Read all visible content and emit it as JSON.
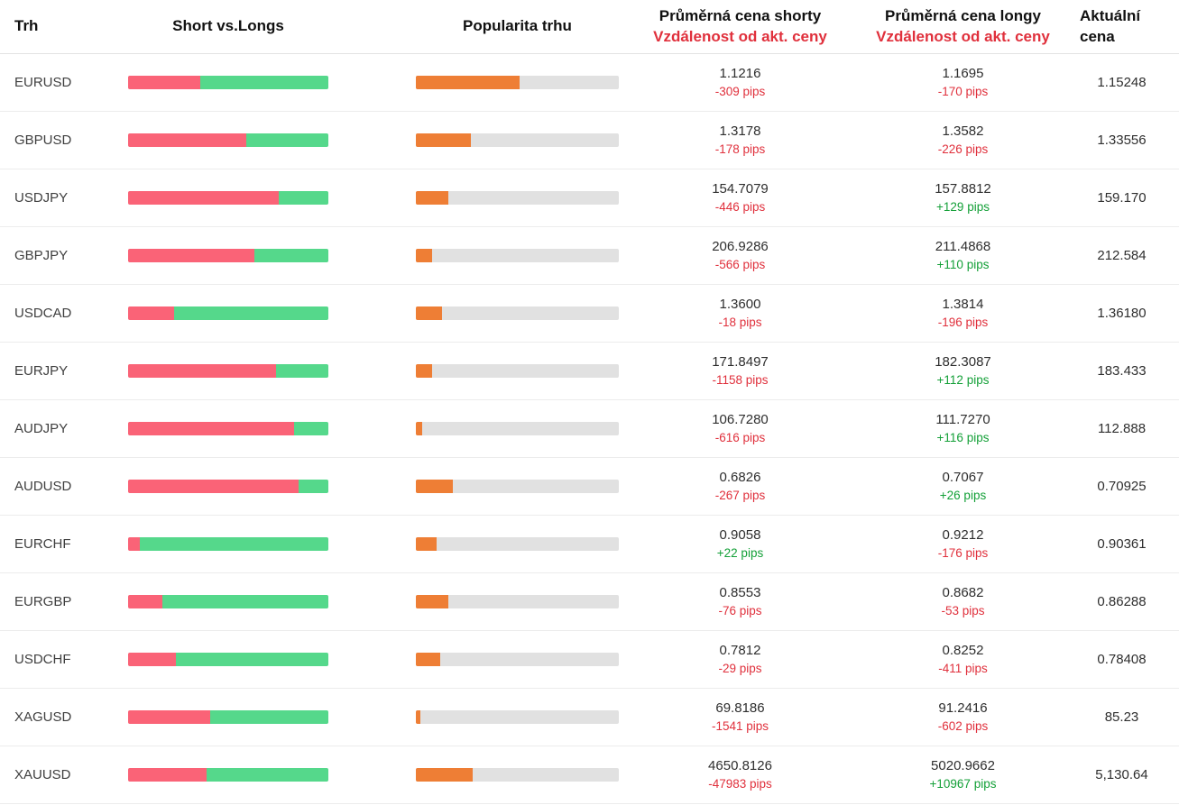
{
  "header": {
    "market": "Trh",
    "short_vs_longs": "Short vs.Longs",
    "popularity": "Popularita trhu",
    "avg_short": "Průměrná cena shorty",
    "avg_long": "Průměrná cena longy",
    "distance": "Vzdálenost od akt. ceny",
    "current": "Aktuální cena"
  },
  "colors": {
    "short_bar": "#fa6377",
    "long_bar": "#55d88b",
    "popularity_fill": "#ee7e35",
    "popularity_track": "#e1e1e1",
    "negative_text": "#e0303c",
    "positive_text": "#14a038"
  },
  "rows": [
    {
      "market": "EURUSD",
      "short_pct": 36,
      "popularity_pct": 51,
      "short_price": "1.1216",
      "short_pips": "-309 pips",
      "long_price": "1.1695",
      "long_pips": "-170 pips",
      "current": "1.15248"
    },
    {
      "market": "GBPUSD",
      "short_pct": 59,
      "popularity_pct": 27,
      "short_price": "1.3178",
      "short_pips": "-178 pips",
      "long_price": "1.3582",
      "long_pips": "-226 pips",
      "current": "1.33556"
    },
    {
      "market": "USDJPY",
      "short_pct": 75,
      "popularity_pct": 16,
      "short_price": "154.7079",
      "short_pips": "-446 pips",
      "long_price": "157.8812",
      "long_pips": "+129 pips",
      "current": "159.170"
    },
    {
      "market": "GBPJPY",
      "short_pct": 63,
      "popularity_pct": 8,
      "short_price": "206.9286",
      "short_pips": "-566 pips",
      "long_price": "211.4868",
      "long_pips": "+110 pips",
      "current": "212.584"
    },
    {
      "market": "USDCAD",
      "short_pct": 23,
      "popularity_pct": 13,
      "short_price": "1.3600",
      "short_pips": "-18 pips",
      "long_price": "1.3814",
      "long_pips": "-196 pips",
      "current": "1.36180"
    },
    {
      "market": "EURJPY",
      "short_pct": 74,
      "popularity_pct": 8,
      "short_price": "171.8497",
      "short_pips": "-1158 pips",
      "long_price": "182.3087",
      "long_pips": "+112 pips",
      "current": "183.433"
    },
    {
      "market": "AUDJPY",
      "short_pct": 83,
      "popularity_pct": 3,
      "short_price": "106.7280",
      "short_pips": "-616 pips",
      "long_price": "111.7270",
      "long_pips": "+116 pips",
      "current": "112.888"
    },
    {
      "market": "AUDUSD",
      "short_pct": 85,
      "popularity_pct": 18,
      "short_price": "0.6826",
      "short_pips": "-267 pips",
      "long_price": "0.7067",
      "long_pips": "+26 pips",
      "current": "0.70925"
    },
    {
      "market": "EURCHF",
      "short_pct": 6,
      "popularity_pct": 10,
      "short_price": "0.9058",
      "short_pips": "+22 pips",
      "long_price": "0.9212",
      "long_pips": "-176 pips",
      "current": "0.90361"
    },
    {
      "market": "EURGBP",
      "short_pct": 17,
      "popularity_pct": 16,
      "short_price": "0.8553",
      "short_pips": "-76 pips",
      "long_price": "0.8682",
      "long_pips": "-53 pips",
      "current": "0.86288"
    },
    {
      "market": "USDCHF",
      "short_pct": 24,
      "popularity_pct": 12,
      "short_price": "0.7812",
      "short_pips": "-29 pips",
      "long_price": "0.8252",
      "long_pips": "-411 pips",
      "current": "0.78408"
    },
    {
      "market": "XAGUSD",
      "short_pct": 41,
      "popularity_pct": 2,
      "short_price": "69.8186",
      "short_pips": "-1541 pips",
      "long_price": "91.2416",
      "long_pips": "-602 pips",
      "current": "85.23"
    },
    {
      "market": "XAUUSD",
      "short_pct": 39,
      "popularity_pct": 28,
      "short_price": "4650.8126",
      "short_pips": "-47983 pips",
      "long_price": "5020.9662",
      "long_pips": "+10967 pips",
      "current": "5,130.64"
    }
  ]
}
